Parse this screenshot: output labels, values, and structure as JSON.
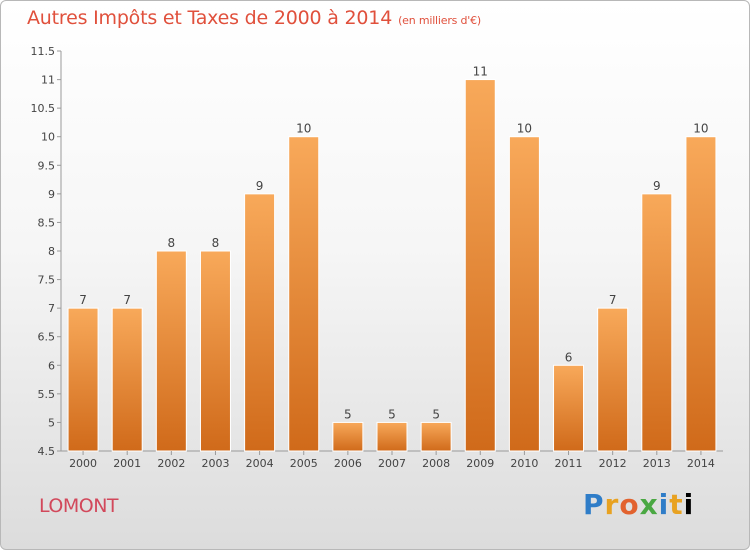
{
  "header": {
    "title": "Autres Impôts et Taxes de 2000 à 2014",
    "subtitle": "(en milliers d'€)"
  },
  "footer": {
    "town": "LOMONT",
    "logo": "Proxiti"
  },
  "colors": {
    "title": "#e0503c",
    "town": "#d2485b",
    "bar_light": "#f8a95a",
    "bar_dark": "#d06a1a"
  },
  "chart_data": {
    "type": "bar",
    "title": "Autres Impôts et Taxes de 2000 à 2014",
    "subtitle": "(en milliers d'€)",
    "categories": [
      "2000",
      "2001",
      "2002",
      "2003",
      "2004",
      "2005",
      "2006",
      "2007",
      "2008",
      "2009",
      "2010",
      "2011",
      "2012",
      "2013",
      "2014"
    ],
    "values": [
      7,
      7,
      8,
      8,
      9,
      10,
      5,
      5,
      5,
      11,
      10,
      6,
      7,
      9,
      10
    ],
    "ylim": [
      4.5,
      11.5
    ],
    "yticks": [
      "4.5",
      "5",
      "5.5",
      "6",
      "6.5",
      "7",
      "7.5",
      "8",
      "8.5",
      "9",
      "9.5",
      "10",
      "10.5",
      "11",
      "11.5"
    ],
    "grid": false
  }
}
